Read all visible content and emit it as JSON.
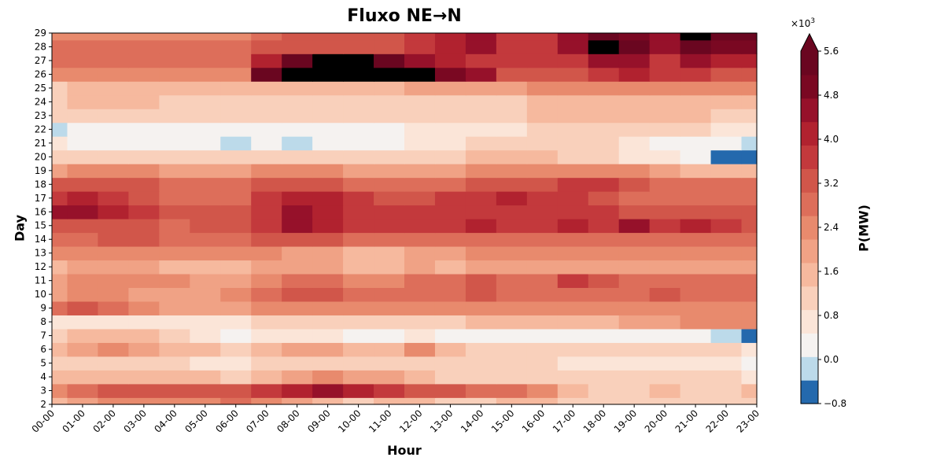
{
  "chart_data": {
    "type": "heatmap",
    "title": "Fluxo NE→N",
    "xlabel": "Hour",
    "ylabel": "Day",
    "colorbar_label": "P(MW)",
    "colorbar_scale": "×10",
    "colorbar_scale_exp": "3",
    "x_categories": [
      "00-00",
      "01-00",
      "02-00",
      "03-00",
      "04-00",
      "05-00",
      "06-00",
      "07-00",
      "08-00",
      "09-00",
      "10-00",
      "11-00",
      "12-00",
      "13-00",
      "14-00",
      "15-00",
      "16-00",
      "17-00",
      "18-00",
      "19-00",
      "20-00",
      "21-00",
      "22-00",
      "23-00"
    ],
    "y_categories": [
      "2",
      "3",
      "4",
      "5",
      "6",
      "7",
      "8",
      "9",
      "10",
      "11",
      "12",
      "13",
      "14",
      "15",
      "16",
      "17",
      "18",
      "19",
      "20",
      "21",
      "22",
      "23",
      "24",
      "25",
      "26",
      "27",
      "28",
      "29"
    ],
    "colorbar_ticks": [
      "−0.8",
      "0.0",
      "0.8",
      "1.6",
      "2.4",
      "3.2",
      "4.0",
      "4.8",
      "5.6"
    ],
    "levels": [
      -0.8,
      -0.4,
      0.0,
      0.4,
      0.8,
      1.2,
      1.6,
      2.0,
      2.4,
      2.8,
      3.2,
      3.6,
      4.0,
      4.4,
      4.8,
      5.2,
      5.6
    ],
    "level_colors": [
      "#2469ad",
      "#bcdaea",
      "#f5f2f0",
      "#fbe5d8",
      "#f9d0bb",
      "#f6b99e",
      "#f0a285",
      "#e88a6d",
      "#dd6e5a",
      "#d1564a",
      "#c3393c",
      "#b1222f",
      "#96112a",
      "#7a0822",
      "#6a0620"
    ],
    "unit_multiplier": 1000,
    "grid": false,
    "colorbar_extend": "max",
    "z": [
      [
        1.6,
        2.0,
        2.4,
        2.4,
        2.4,
        2.4,
        2.8,
        2.4,
        2.0,
        1.6,
        1.2,
        1.6,
        1.6,
        1.2,
        1.2,
        1.6,
        1.6,
        1.2,
        1.2,
        1.2,
        1.2,
        1.2,
        1.2,
        1.2
      ],
      [
        2.4,
        2.8,
        3.2,
        3.2,
        3.2,
        3.2,
        3.2,
        3.6,
        4.0,
        4.4,
        4.0,
        3.6,
        3.2,
        3.2,
        2.8,
        2.8,
        2.4,
        1.6,
        1.2,
        1.2,
        1.6,
        1.2,
        1.2,
        1.6
      ],
      [
        1.6,
        1.6,
        1.6,
        1.6,
        1.6,
        1.6,
        1.2,
        1.6,
        2.0,
        2.4,
        2.0,
        2.0,
        1.6,
        1.2,
        1.2,
        1.2,
        1.2,
        1.2,
        1.2,
        1.2,
        1.2,
        1.2,
        1.2,
        0.8
      ],
      [
        1.2,
        1.2,
        1.2,
        1.2,
        1.2,
        0.8,
        0.8,
        1.2,
        1.2,
        1.2,
        1.2,
        1.2,
        1.2,
        1.2,
        1.2,
        1.2,
        1.2,
        0.8,
        0.8,
        0.8,
        0.8,
        0.8,
        0.8,
        0.4
      ],
      [
        1.6,
        2.0,
        2.4,
        2.0,
        1.6,
        1.6,
        1.2,
        1.6,
        2.0,
        2.0,
        1.6,
        1.6,
        2.4,
        1.6,
        1.2,
        1.2,
        1.2,
        1.2,
        1.2,
        1.2,
        1.2,
        1.2,
        1.2,
        0.8
      ],
      [
        1.2,
        1.6,
        1.6,
        1.6,
        1.2,
        0.8,
        0.4,
        0.8,
        0.8,
        0.8,
        0.4,
        0.4,
        0.8,
        0.4,
        0.4,
        0.4,
        0.4,
        0.4,
        0.4,
        0.4,
        0.4,
        0.4,
        0.0,
        -0.4
      ],
      [
        0.8,
        0.8,
        0.8,
        0.8,
        0.8,
        0.8,
        0.8,
        1.2,
        1.2,
        1.2,
        1.2,
        1.2,
        1.2,
        1.2,
        1.6,
        1.6,
        1.6,
        1.6,
        1.6,
        2.0,
        2.0,
        2.4,
        2.4,
        2.4
      ],
      [
        2.8,
        3.2,
        2.8,
        2.4,
        2.0,
        2.0,
        2.0,
        2.4,
        2.4,
        2.4,
        2.4,
        2.4,
        2.4,
        2.4,
        2.4,
        2.4,
        2.4,
        2.4,
        2.4,
        2.4,
        2.4,
        2.4,
        2.4,
        2.4
      ],
      [
        2.0,
        2.4,
        2.4,
        2.0,
        2.0,
        2.0,
        2.4,
        2.8,
        3.2,
        3.2,
        2.8,
        2.8,
        2.8,
        2.8,
        3.2,
        2.8,
        2.8,
        2.8,
        2.8,
        2.8,
        3.2,
        2.8,
        2.8,
        2.8
      ],
      [
        2.0,
        2.4,
        2.4,
        2.4,
        2.4,
        2.0,
        2.0,
        2.4,
        2.8,
        2.8,
        2.4,
        2.4,
        2.8,
        2.8,
        3.2,
        2.8,
        2.8,
        3.6,
        3.2,
        2.8,
        2.8,
        2.8,
        2.8,
        2.8
      ],
      [
        1.6,
        2.0,
        2.0,
        2.0,
        1.6,
        1.6,
        1.6,
        2.0,
        2.0,
        2.0,
        1.6,
        1.6,
        2.0,
        1.6,
        2.0,
        2.0,
        2.0,
        2.0,
        2.0,
        2.0,
        2.0,
        2.0,
        2.0,
        2.0
      ],
      [
        2.4,
        2.4,
        2.4,
        2.4,
        2.4,
        2.4,
        2.4,
        2.4,
        2.0,
        2.0,
        1.6,
        1.6,
        2.0,
        2.0,
        2.4,
        2.4,
        2.4,
        2.4,
        2.4,
        2.4,
        2.4,
        2.4,
        2.4,
        2.4
      ],
      [
        2.8,
        2.8,
        3.2,
        3.2,
        2.8,
        2.8,
        2.8,
        3.2,
        3.2,
        3.2,
        2.8,
        2.8,
        2.8,
        2.8,
        2.8,
        2.8,
        2.8,
        2.8,
        2.8,
        2.8,
        2.8,
        2.8,
        2.8,
        2.8
      ],
      [
        3.2,
        3.2,
        3.2,
        3.2,
        2.8,
        3.2,
        3.2,
        3.6,
        4.4,
        4.0,
        3.6,
        3.6,
        3.6,
        3.6,
        4.0,
        3.6,
        3.6,
        4.0,
        3.6,
        4.4,
        3.6,
        4.0,
        3.6,
        3.2
      ],
      [
        4.4,
        4.4,
        4.0,
        3.6,
        3.2,
        3.2,
        3.2,
        3.6,
        4.4,
        4.0,
        3.6,
        3.6,
        3.6,
        3.6,
        3.6,
        3.6,
        3.6,
        3.6,
        3.6,
        3.2,
        3.2,
        3.2,
        3.2,
        3.2
      ],
      [
        3.6,
        4.0,
        3.6,
        3.2,
        2.8,
        2.8,
        2.8,
        3.6,
        4.0,
        4.0,
        3.6,
        3.2,
        3.2,
        3.6,
        3.6,
        4.0,
        3.6,
        3.6,
        3.2,
        2.8,
        2.8,
        2.8,
        2.8,
        2.8
      ],
      [
        3.2,
        3.2,
        3.2,
        3.2,
        2.8,
        2.8,
        2.8,
        3.2,
        3.2,
        3.2,
        2.8,
        2.8,
        2.8,
        2.8,
        3.2,
        3.2,
        3.2,
        3.6,
        3.6,
        3.2,
        2.8,
        2.8,
        2.8,
        2.8
      ],
      [
        2.0,
        2.4,
        2.4,
        2.4,
        2.0,
        2.0,
        2.0,
        2.4,
        2.4,
        2.4,
        2.0,
        2.0,
        2.0,
        2.0,
        2.4,
        2.4,
        2.4,
        2.4,
        2.4,
        2.4,
        2.0,
        1.6,
        1.6,
        1.6
      ],
      [
        1.2,
        1.2,
        1.2,
        1.2,
        1.2,
        1.2,
        1.2,
        1.2,
        1.2,
        1.2,
        1.2,
        1.2,
        1.2,
        1.2,
        1.6,
        1.6,
        1.6,
        1.2,
        1.2,
        0.8,
        0.8,
        0.4,
        -0.4,
        -0.8
      ],
      [
        0.8,
        0.4,
        0.4,
        0.4,
        0.4,
        0.4,
        0.0,
        0.4,
        0.0,
        0.4,
        0.4,
        0.4,
        0.8,
        0.8,
        1.2,
        1.2,
        1.2,
        1.2,
        1.2,
        0.8,
        0.4,
        0.4,
        0.4,
        0.0
      ],
      [
        0.0,
        0.4,
        0.4,
        0.4,
        0.4,
        0.4,
        0.4,
        0.4,
        0.4,
        0.4,
        0.4,
        0.4,
        0.8,
        0.8,
        0.8,
        0.8,
        1.2,
        1.2,
        1.2,
        1.2,
        1.2,
        1.2,
        0.8,
        0.8
      ],
      [
        1.2,
        1.2,
        1.2,
        1.2,
        1.2,
        1.2,
        1.2,
        1.2,
        1.2,
        1.2,
        1.2,
        1.2,
        1.2,
        1.2,
        1.2,
        1.2,
        1.6,
        1.6,
        1.6,
        1.6,
        1.6,
        1.6,
        1.2,
        1.2
      ],
      [
        1.2,
        1.6,
        1.6,
        1.6,
        1.2,
        1.2,
        1.2,
        1.2,
        1.2,
        1.2,
        1.2,
        1.2,
        1.2,
        1.2,
        1.2,
        1.2,
        1.6,
        1.6,
        1.6,
        1.6,
        1.6,
        1.6,
        1.6,
        1.6
      ],
      [
        1.2,
        1.6,
        1.6,
        1.6,
        1.6,
        1.6,
        1.6,
        1.6,
        1.6,
        1.6,
        1.6,
        1.6,
        2.0,
        2.0,
        2.0,
        2.0,
        2.4,
        2.4,
        2.4,
        2.4,
        2.4,
        2.4,
        2.4,
        2.4
      ],
      [
        2.4,
        2.4,
        2.4,
        2.4,
        2.4,
        2.4,
        2.4,
        5.2,
        5.6,
        5.6,
        5.6,
        5.6,
        5.6,
        4.8,
        4.4,
        3.2,
        3.2,
        3.2,
        3.6,
        4.0,
        3.6,
        3.6,
        3.2,
        3.2
      ],
      [
        2.8,
        2.8,
        2.8,
        2.8,
        2.8,
        2.8,
        2.8,
        4.0,
        5.2,
        5.6,
        5.6,
        5.2,
        4.4,
        4.0,
        3.6,
        3.6,
        3.6,
        3.6,
        4.4,
        4.4,
        3.6,
        4.4,
        4.0,
        4.0
      ],
      [
        2.8,
        2.8,
        2.8,
        2.8,
        2.8,
        2.8,
        2.8,
        3.2,
        3.2,
        3.2,
        3.2,
        3.2,
        3.6,
        4.0,
        4.4,
        3.6,
        3.6,
        4.4,
        5.6,
        5.2,
        4.4,
        5.2,
        4.8,
        4.8
      ],
      [
        2.4,
        2.4,
        2.4,
        2.4,
        2.4,
        2.4,
        2.4,
        2.8,
        3.2,
        3.2,
        3.2,
        3.2,
        3.6,
        4.0,
        4.4,
        3.6,
        3.6,
        4.4,
        5.2,
        4.8,
        4.4,
        5.6,
        5.2,
        5.2
      ]
    ]
  }
}
